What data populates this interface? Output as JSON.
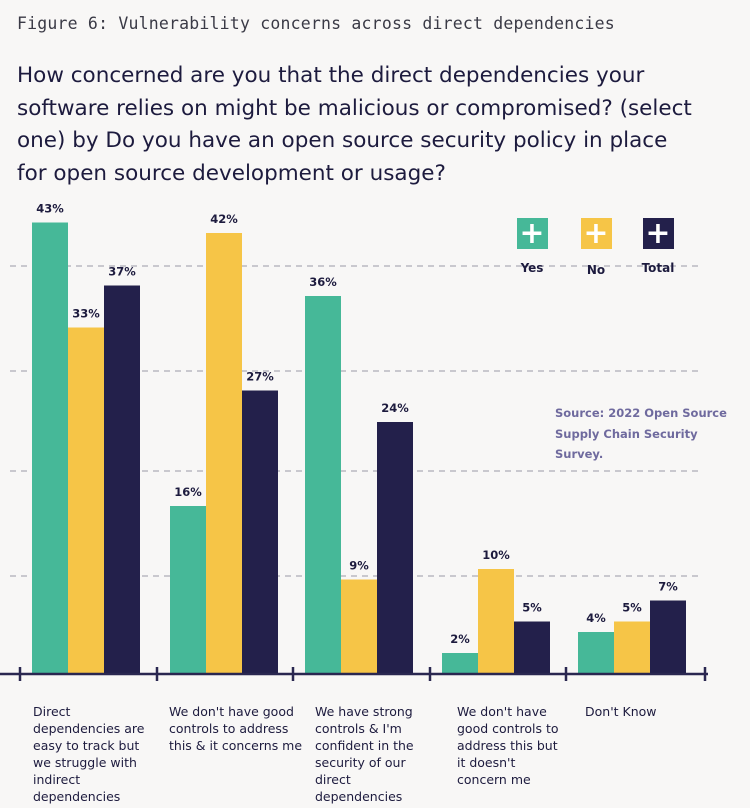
{
  "figure_label": "Figure 6: Vulnerability concerns across direct dependencies",
  "source_note": "Source: 2022 Open Source Supply Chain Security Survey.",
  "colors": {
    "Yes": "#46b898",
    "No": "#f6c547",
    "Total": "#23204b",
    "axis": "#2a2750",
    "grid": "#9a98a6"
  },
  "legend_icon": "plus-icon",
  "chart_data": {
    "type": "bar",
    "title": "How concerned are you that the direct dependencies your software relies on might be malicious or compromised? (select one) by Do you have an open source security policy in place for open source development or usage?",
    "categories": [
      "Direct dependencies are easy to track but we struggle with indirect dependencies",
      "We don't have good controls to address this & it concerns me",
      "We have strong controls & I'm confident in the security of our direct dependencies",
      "We don't have good controls to address this but it doesn't concern me",
      "Don't Know"
    ],
    "series": [
      {
        "name": "Yes",
        "values": [
          43,
          16,
          36,
          2,
          4
        ],
        "labels": [
          "43%",
          "16%",
          "36%",
          "2%",
          "4%"
        ]
      },
      {
        "name": "No",
        "values": [
          33,
          42,
          9,
          10,
          5
        ],
        "labels": [
          "33%",
          "42%",
          "9%",
          "10%",
          "5%"
        ]
      },
      {
        "name": "Total",
        "values": [
          37,
          27,
          24,
          5,
          7
        ],
        "labels": [
          "37%",
          "27%",
          "24%",
          "5%",
          "7%"
        ]
      }
    ],
    "ylim": [
      0,
      50
    ],
    "grid": true,
    "legend": "top-right"
  }
}
